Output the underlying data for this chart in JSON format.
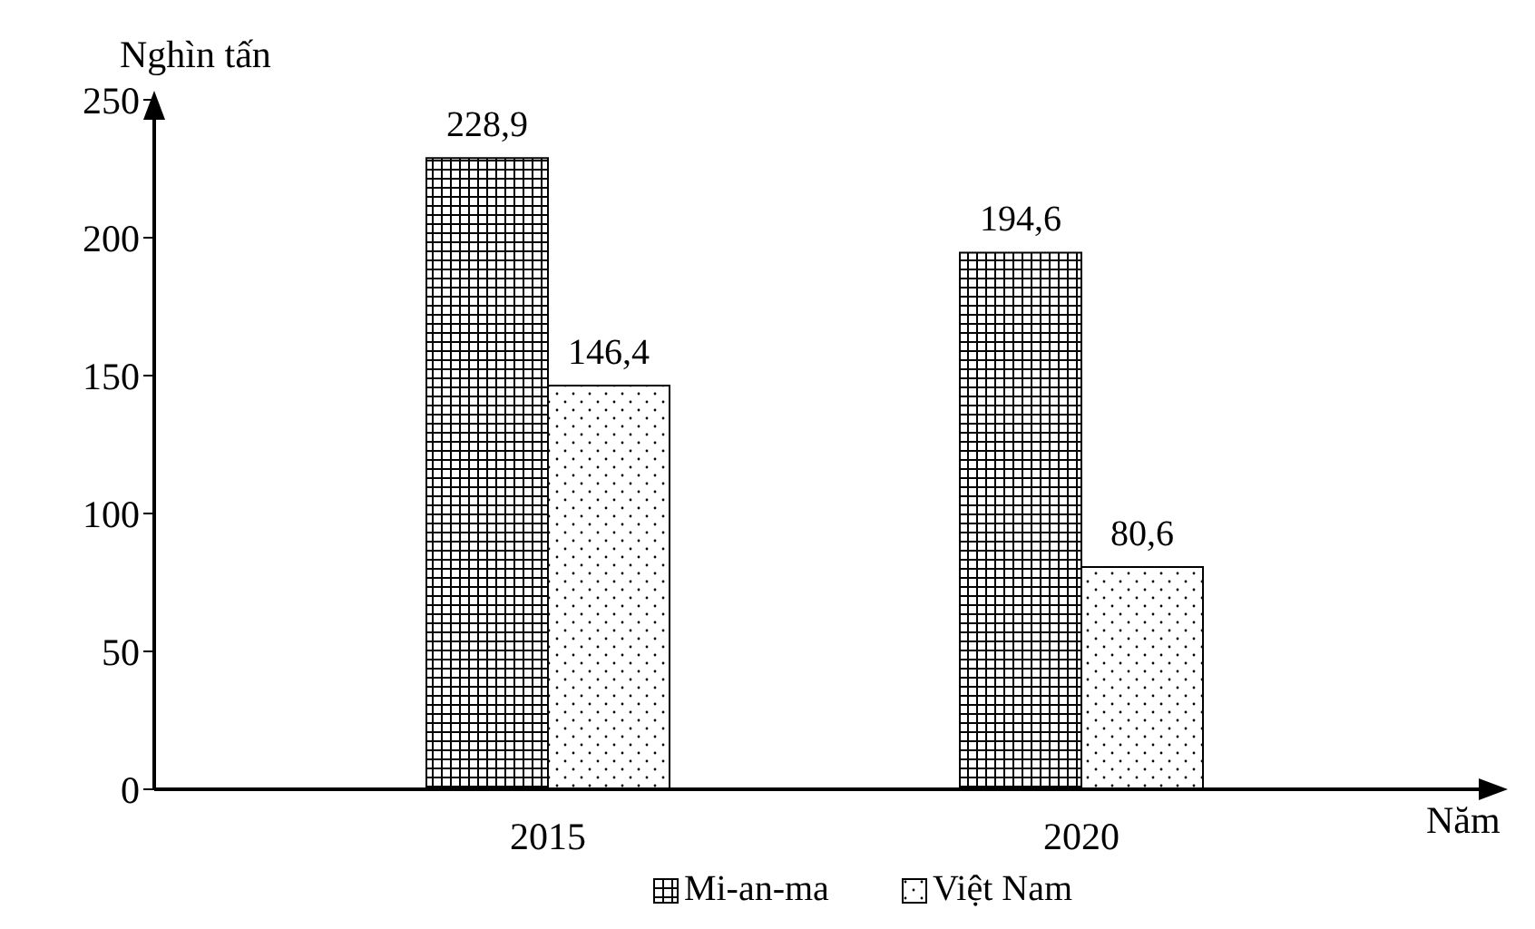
{
  "chart_data": {
    "type": "bar",
    "xlabel": "Năm",
    "ylabel": "Nghìn tấn",
    "categories": [
      "2015",
      "2020"
    ],
    "series": [
      {
        "name": "Mi-an-ma",
        "color": "#000000",
        "values": [
          228.9,
          194.6
        ],
        "value_labels": [
          "228,9",
          "194,6"
        ]
      },
      {
        "name": "Việt Nam",
        "color": "#000000",
        "values": [
          146.4,
          80.6
        ],
        "value_labels": [
          "146,4",
          "80,6"
        ]
      }
    ],
    "ylim": [
      0,
      250
    ],
    "yticks": [
      0,
      50,
      100,
      150,
      200,
      250
    ],
    "grid": false,
    "legend": "bottom"
  }
}
